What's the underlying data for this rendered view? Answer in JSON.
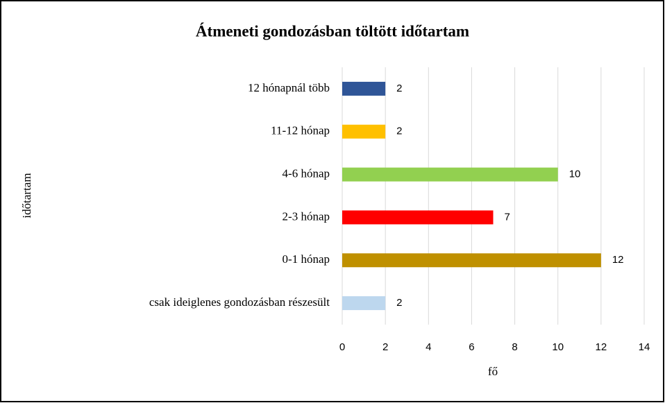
{
  "chart_data": {
    "type": "bar",
    "orientation": "horizontal",
    "title": "Átmeneti gondozásban töltött időtartam",
    "x_label": "fő",
    "y_label": "időtartam",
    "categories": [
      "12 hónapnál több",
      "11-12 hónap",
      "4-6 hónap",
      "2-3 hónap",
      "0-1 hónap",
      "csak ideiglenes gondozásban részesült"
    ],
    "values": [
      2,
      2,
      10,
      7,
      12,
      2
    ],
    "colors": [
      "#2f5597",
      "#ffc000",
      "#92d050",
      "#ff0000",
      "#bf9000",
      "#bdd7ee"
    ],
    "xlim": [
      0,
      14
    ],
    "xticks": [
      0,
      2,
      4,
      6,
      8,
      10,
      12,
      14
    ],
    "grid": true
  }
}
